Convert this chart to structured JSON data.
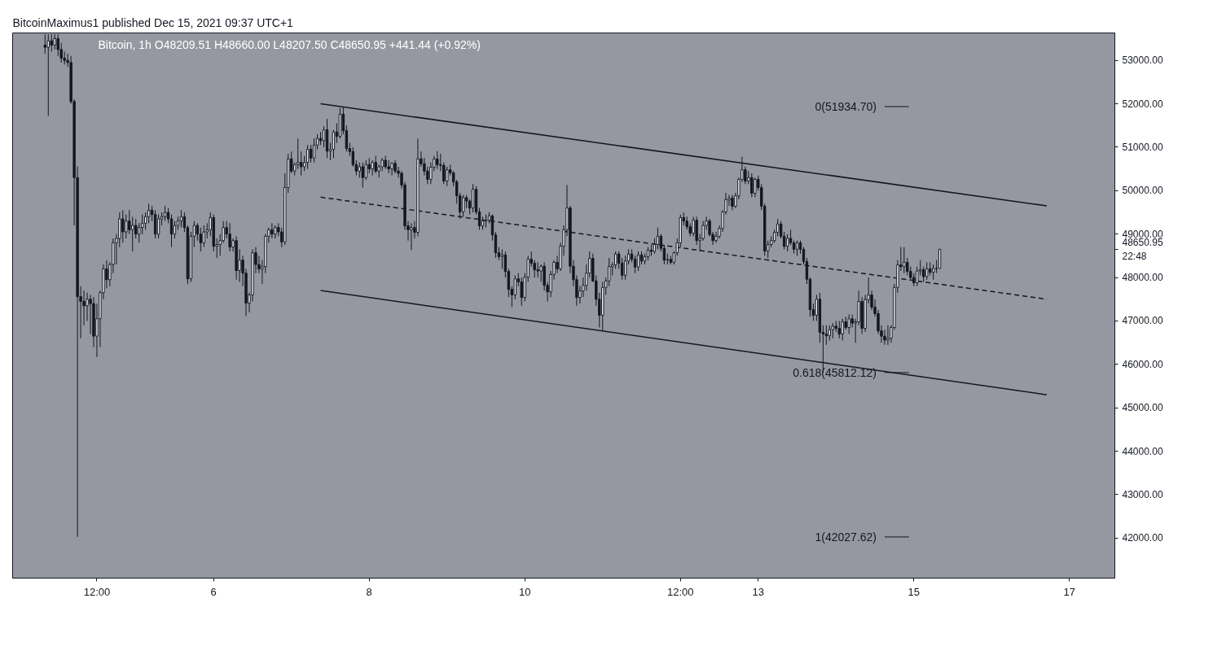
{
  "chart_data": {
    "type": "candlestick",
    "title": "BitcoinMaximus1 published Dec 15, 2021 09:37 UTC+1",
    "annotations": [
      "Bitcoin, 1h   O48209.51  H48660.00  L48207.50  C48650.95  +441.44 (+0.92%)"
    ],
    "ref_lines": [
      {
        "axis": "y",
        "value": 51934.7,
        "label": "0(51934.70)"
      },
      {
        "axis": "y",
        "value": 45812.12,
        "label": "0.618(45812.12)"
      },
      {
        "axis": "y",
        "value": 42027.62,
        "label": "1(42027.62)"
      }
    ],
    "xlim": [
      "2021-12-03T10:00",
      "2021-12-17T14:00"
    ],
    "xticks": [
      {
        "value": "2021-12-04T12:00",
        "label": "12:00"
      },
      {
        "value": "2021-12-06",
        "label": "6"
      },
      {
        "value": "2021-12-08",
        "label": "8"
      },
      {
        "value": "2021-12-10",
        "label": "10"
      },
      {
        "value": "2021-12-12",
        "label": "12:00"
      },
      {
        "value": "2021-12-13",
        "label": "13"
      },
      {
        "value": "2021-12-15",
        "label": "15"
      },
      {
        "value": "2021-12-17",
        "label": "17"
      }
    ],
    "ylim": [
      41080,
      53630
    ],
    "yticks": [
      {
        "value": 42000,
        "label": "42000.00"
      },
      {
        "value": 43000,
        "label": "43000.00"
      },
      {
        "value": 44000,
        "label": "44000.00"
      },
      {
        "value": 45000,
        "label": "45000.00"
      },
      {
        "value": 46000,
        "label": "46000.00"
      },
      {
        "value": 47000,
        "label": "47000.00"
      },
      {
        "value": 48000,
        "label": "48000.00"
      },
      {
        "value": 48650.95,
        "label": "48650.95\n22:48"
      },
      {
        "value": 49000,
        "label": "49000.00"
      },
      {
        "value": 50000,
        "label": "50000.00"
      },
      {
        "value": 51000,
        "label": "51000.00"
      },
      {
        "value": 52000,
        "label": "52000.00"
      },
      {
        "value": 53000,
        "label": "53000.00"
      }
    ],
    "x": [
      "2021-12-03T20:00",
      "2021-12-03T21:00",
      "2021-12-03T22:00",
      "2021-12-03T23:00",
      "2021-12-04T00:00",
      "2021-12-04T01:00",
      "2021-12-04T02:00",
      "2021-12-04T03:00",
      "2021-12-04T04:00",
      "2021-12-04T05:00",
      "2021-12-04T06:00",
      "2021-12-04T07:00",
      "2021-12-04T08:00",
      "2021-12-04T09:00",
      "2021-12-04T10:00",
      "2021-12-04T11:00",
      "2021-12-04T12:00",
      "2021-12-04T13:00",
      "2021-12-04T14:00",
      "2021-12-04T15:00",
      "2021-12-04T16:00",
      "2021-12-04T17:00",
      "2021-12-04T18:00",
      "2021-12-04T19:00",
      "2021-12-04T20:00",
      "2021-12-04T21:00",
      "2021-12-04T22:00",
      "2021-12-04T23:00",
      "2021-12-05T00:00",
      "2021-12-05T01:00",
      "2021-12-05T02:00",
      "2021-12-05T03:00",
      "2021-12-05T04:00",
      "2021-12-05T05:00",
      "2021-12-05T06:00",
      "2021-12-05T07:00",
      "2021-12-05T08:00",
      "2021-12-05T09:00",
      "2021-12-05T10:00",
      "2021-12-05T11:00",
      "2021-12-05T12:00",
      "2021-12-05T13:00",
      "2021-12-05T14:00",
      "2021-12-05T15:00",
      "2021-12-05T16:00",
      "2021-12-05T17:00",
      "2021-12-05T18:00",
      "2021-12-05T19:00",
      "2021-12-05T20:00",
      "2021-12-05T21:00",
      "2021-12-05T22:00",
      "2021-12-05T23:00",
      "2021-12-06T00:00",
      "2021-12-06T01:00",
      "2021-12-06T02:00",
      "2021-12-06T03:00",
      "2021-12-06T04:00",
      "2021-12-06T05:00",
      "2021-12-06T06:00",
      "2021-12-06T07:00",
      "2021-12-06T08:00",
      "2021-12-06T09:00",
      "2021-12-06T10:00",
      "2021-12-06T11:00",
      "2021-12-06T12:00",
      "2021-12-06T13:00",
      "2021-12-06T14:00",
      "2021-12-06T15:00",
      "2021-12-06T16:00",
      "2021-12-06T17:00",
      "2021-12-06T18:00",
      "2021-12-06T19:00",
      "2021-12-06T20:00",
      "2021-12-06T21:00",
      "2021-12-06T22:00",
      "2021-12-06T23:00",
      "2021-12-07T00:00",
      "2021-12-07T01:00",
      "2021-12-07T02:00",
      "2021-12-07T03:00",
      "2021-12-07T04:00",
      "2021-12-07T05:00",
      "2021-12-07T06:00",
      "2021-12-07T07:00",
      "2021-12-07T08:00",
      "2021-12-07T09:00",
      "2021-12-07T10:00",
      "2021-12-07T11:00",
      "2021-12-07T12:00",
      "2021-12-07T13:00",
      "2021-12-07T14:00",
      "2021-12-07T15:00",
      "2021-12-07T16:00",
      "2021-12-07T17:00",
      "2021-12-07T18:00",
      "2021-12-07T19:00",
      "2021-12-07T20:00",
      "2021-12-07T21:00",
      "2021-12-07T22:00",
      "2021-12-07T23:00",
      "2021-12-08T00:00",
      "2021-12-08T01:00",
      "2021-12-08T02:00",
      "2021-12-08T03:00",
      "2021-12-08T04:00",
      "2021-12-08T05:00",
      "2021-12-08T06:00",
      "2021-12-08T07:00",
      "2021-12-08T08:00",
      "2021-12-08T09:00",
      "2021-12-08T10:00",
      "2021-12-08T11:00",
      "2021-12-08T12:00",
      "2021-12-08T13:00",
      "2021-12-08T14:00",
      "2021-12-08T15:00",
      "2021-12-08T16:00",
      "2021-12-08T17:00",
      "2021-12-08T18:00",
      "2021-12-08T19:00",
      "2021-12-08T20:00",
      "2021-12-08T21:00",
      "2021-12-08T22:00",
      "2021-12-08T23:00",
      "2021-12-09T00:00",
      "2021-12-09T01:00",
      "2021-12-09T02:00",
      "2021-12-09T03:00",
      "2021-12-09T04:00",
      "2021-12-09T05:00",
      "2021-12-09T06:00",
      "2021-12-09T07:00",
      "2021-12-09T08:00",
      "2021-12-09T09:00",
      "2021-12-09T10:00",
      "2021-12-09T11:00",
      "2021-12-09T12:00",
      "2021-12-09T13:00",
      "2021-12-09T14:00",
      "2021-12-09T15:00",
      "2021-12-09T16:00",
      "2021-12-09T17:00",
      "2021-12-09T18:00",
      "2021-12-09T19:00",
      "2021-12-09T20:00",
      "2021-12-09T21:00",
      "2021-12-09T22:00",
      "2021-12-09T23:00",
      "2021-12-10T00:00",
      "2021-12-10T01:00",
      "2021-12-10T02:00",
      "2021-12-10T03:00",
      "2021-12-10T04:00",
      "2021-12-10T05:00",
      "2021-12-10T06:00",
      "2021-12-10T07:00",
      "2021-12-10T08:00",
      "2021-12-10T09:00",
      "2021-12-10T10:00",
      "2021-12-10T11:00",
      "2021-12-10T12:00",
      "2021-12-10T13:00",
      "2021-12-10T14:00",
      "2021-12-10T15:00",
      "2021-12-10T16:00",
      "2021-12-10T17:00",
      "2021-12-10T18:00",
      "2021-12-10T19:00",
      "2021-12-10T20:00",
      "2021-12-10T21:00",
      "2021-12-10T22:00",
      "2021-12-10T23:00",
      "2021-12-11T00:00",
      "2021-12-11T01:00",
      "2021-12-11T02:00",
      "2021-12-11T03:00",
      "2021-12-11T04:00",
      "2021-12-11T05:00",
      "2021-12-11T06:00",
      "2021-12-11T07:00",
      "2021-12-11T08:00",
      "2021-12-11T09:00",
      "2021-12-11T10:00",
      "2021-12-11T11:00",
      "2021-12-11T12:00",
      "2021-12-11T13:00",
      "2021-12-11T14:00",
      "2021-12-11T15:00",
      "2021-12-11T16:00",
      "2021-12-11T17:00",
      "2021-12-11T18:00",
      "2021-12-11T19:00",
      "2021-12-11T20:00",
      "2021-12-11T21:00",
      "2021-12-11T22:00",
      "2021-12-11T23:00",
      "2021-12-12T00:00",
      "2021-12-12T01:00",
      "2021-12-12T02:00",
      "2021-12-12T03:00",
      "2021-12-12T04:00",
      "2021-12-12T05:00",
      "2021-12-12T06:00",
      "2021-12-12T07:00",
      "2021-12-12T08:00",
      "2021-12-12T09:00",
      "2021-12-12T10:00",
      "2021-12-12T11:00",
      "2021-12-12T12:00",
      "2021-12-12T13:00",
      "2021-12-12T14:00",
      "2021-12-12T15:00",
      "2021-12-12T16:00",
      "2021-12-12T17:00",
      "2021-12-12T18:00",
      "2021-12-12T19:00",
      "2021-12-12T20:00",
      "2021-12-12T21:00",
      "2021-12-12T22:00",
      "2021-12-12T23:00",
      "2021-12-13T00:00",
      "2021-12-13T01:00",
      "2021-12-13T02:00",
      "2021-12-13T03:00",
      "2021-12-13T04:00",
      "2021-12-13T05:00",
      "2021-12-13T06:00",
      "2021-12-13T07:00",
      "2021-12-13T08:00",
      "2021-12-13T09:00",
      "2021-12-13T10:00",
      "2021-12-13T11:00",
      "2021-12-13T12:00",
      "2021-12-13T13:00",
      "2021-12-13T14:00",
      "2021-12-13T15:00",
      "2021-12-13T16:00",
      "2021-12-13T17:00",
      "2021-12-13T18:00",
      "2021-12-13T19:00",
      "2021-12-13T20:00",
      "2021-12-13T21:00",
      "2021-12-13T22:00",
      "2021-12-13T23:00",
      "2021-12-14T00:00",
      "2021-12-14T01:00",
      "2021-12-14T02:00",
      "2021-12-14T03:00",
      "2021-12-14T04:00",
      "2021-12-14T05:00",
      "2021-12-14T06:00",
      "2021-12-14T07:00",
      "2021-12-14T08:00",
      "2021-12-14T09:00",
      "2021-12-14T10:00",
      "2021-12-14T11:00",
      "2021-12-14T12:00",
      "2021-12-14T13:00",
      "2021-12-14T14:00",
      "2021-12-14T15:00",
      "2021-12-14T16:00",
      "2021-12-14T17:00",
      "2021-12-14T18:00",
      "2021-12-14T19:00",
      "2021-12-14T20:00",
      "2021-12-14T21:00",
      "2021-12-14T22:00",
      "2021-12-14T23:00",
      "2021-12-15T00:00",
      "2021-12-15T01:00",
      "2021-12-15T02:00",
      "2021-12-15T03:00",
      "2021-12-15T04:00",
      "2021-12-15T05:00",
      "2021-12-15T06:00",
      "2021-12-15T07:00",
      "2021-12-15T08:00"
    ],
    "ohlc": [
      [
        53350,
        53600,
        53150,
        53300
      ],
      [
        53300,
        53600,
        51720,
        53450
      ],
      [
        53450,
        53600,
        53200,
        53350
      ],
      [
        53350,
        53600,
        53250,
        53500
      ],
      [
        53500,
        53600,
        53100,
        53250
      ],
      [
        53250,
        53400,
        52950,
        53050
      ],
      [
        53050,
        53200,
        52900,
        53000
      ],
      [
        53000,
        53150,
        52850,
        52950
      ],
      [
        52950,
        53100,
        52000,
        52050
      ],
      [
        52050,
        52100,
        49200,
        50300
      ],
      [
        50300,
        50560,
        42027.62,
        47560
      ],
      [
        47560,
        47800,
        46600,
        47450
      ],
      [
        47450,
        47700,
        46900,
        47350
      ],
      [
        47350,
        47650,
        47000,
        47500
      ],
      [
        47500,
        47600,
        46700,
        47400
      ],
      [
        47400,
        47550,
        46400,
        46650
      ],
      [
        46650,
        47400,
        46170,
        47050
      ],
      [
        47050,
        47700,
        46400,
        47650
      ],
      [
        47650,
        48300,
        47500,
        48200
      ],
      [
        48200,
        48400,
        47750,
        47950
      ],
      [
        47950,
        48350,
        47800,
        48300
      ],
      [
        48300,
        48900,
        48100,
        48800
      ],
      [
        48800,
        49000,
        48300,
        48900
      ],
      [
        48900,
        49500,
        48700,
        49350
      ],
      [
        49350,
        49550,
        48800,
        49050
      ],
      [
        49050,
        49450,
        48900,
        49300
      ],
      [
        49300,
        49550,
        49000,
        49100
      ],
      [
        49100,
        49400,
        48600,
        49200
      ],
      [
        49200,
        49350,
        48900,
        49000
      ],
      [
        49000,
        49250,
        48800,
        49150
      ],
      [
        49150,
        49450,
        49000,
        49250
      ],
      [
        49250,
        49500,
        49100,
        49400
      ],
      [
        49400,
        49700,
        49250,
        49550
      ],
      [
        49550,
        49650,
        49300,
        49450
      ],
      [
        49450,
        49550,
        48900,
        49000
      ],
      [
        49000,
        49450,
        48900,
        49350
      ],
      [
        49350,
        49500,
        49200,
        49400
      ],
      [
        49400,
        49650,
        49300,
        49500
      ],
      [
        49500,
        49600,
        49250,
        49350
      ],
      [
        49350,
        49450,
        48700,
        49000
      ],
      [
        49000,
        49300,
        48900,
        49200
      ],
      [
        49200,
        49400,
        49100,
        49300
      ],
      [
        49300,
        49550,
        49150,
        49400
      ],
      [
        49400,
        49500,
        49050,
        49150
      ],
      [
        49150,
        49200,
        47850,
        47970
      ],
      [
        47970,
        49050,
        47900,
        48950
      ],
      [
        48950,
        49300,
        48700,
        49200
      ],
      [
        49200,
        49250,
        48850,
        49000
      ],
      [
        49000,
        49150,
        48600,
        48800
      ],
      [
        48800,
        49200,
        48700,
        49050
      ],
      [
        49050,
        49250,
        48900,
        49100
      ],
      [
        49100,
        49500,
        48950,
        49380
      ],
      [
        49380,
        49450,
        48600,
        48720
      ],
      [
        48720,
        48900,
        48450,
        48760
      ],
      [
        48760,
        49000,
        48500,
        48850
      ],
      [
        48850,
        49300,
        48800,
        49150
      ],
      [
        49150,
        49300,
        48900,
        49000
      ],
      [
        49000,
        49250,
        48600,
        48700
      ],
      [
        48700,
        48900,
        48600,
        48850
      ],
      [
        48850,
        48950,
        47950,
        48160
      ],
      [
        48160,
        48650,
        47900,
        48400
      ],
      [
        48400,
        48500,
        47800,
        48100
      ],
      [
        48100,
        48200,
        47110,
        47410
      ],
      [
        47410,
        47650,
        47200,
        47600
      ],
      [
        47600,
        48650,
        47450,
        48570
      ],
      [
        48570,
        48700,
        48100,
        48300
      ],
      [
        48300,
        48500,
        48100,
        48200
      ],
      [
        48200,
        48400,
        47850,
        48250
      ],
      [
        48250,
        49000,
        48100,
        48950
      ],
      [
        48950,
        49150,
        48800,
        49100
      ],
      [
        49100,
        49250,
        48900,
        49000
      ],
      [
        49000,
        49200,
        48900,
        49150
      ],
      [
        49150,
        49250,
        48950,
        49050
      ],
      [
        49050,
        49150,
        48700,
        48820
      ],
      [
        48820,
        50400,
        48750,
        50070
      ],
      [
        50070,
        50850,
        49950,
        50730
      ],
      [
        50730,
        50900,
        50400,
        50450
      ],
      [
        50450,
        50650,
        50350,
        50600
      ],
      [
        50600,
        51200,
        50500,
        50650
      ],
      [
        50650,
        50900,
        50350,
        50550
      ],
      [
        50550,
        50800,
        50450,
        50650
      ],
      [
        50650,
        51050,
        50500,
        50950
      ],
      [
        50950,
        51050,
        50650,
        50750
      ],
      [
        50750,
        51200,
        50650,
        51050
      ],
      [
        51050,
        51300,
        50950,
        51200
      ],
      [
        51200,
        51350,
        51050,
        51150
      ],
      [
        51150,
        51480,
        51000,
        51400
      ],
      [
        51400,
        51650,
        50750,
        50910
      ],
      [
        50910,
        51100,
        50700,
        50950
      ],
      [
        50950,
        51400,
        50750,
        51350
      ],
      [
        51350,
        51550,
        51100,
        51250
      ],
      [
        51250,
        51900,
        51200,
        51760
      ],
      [
        51760,
        51934.7,
        51300,
        51380
      ],
      [
        51380,
        51500,
        50900,
        50970
      ],
      [
        50970,
        51100,
        50800,
        50900
      ],
      [
        50900,
        51000,
        50550,
        50600
      ],
      [
        50600,
        50700,
        50350,
        50450
      ],
      [
        50450,
        50650,
        50300,
        50550
      ],
      [
        50550,
        50650,
        50070,
        50300
      ],
      [
        50300,
        50700,
        50250,
        50600
      ],
      [
        50600,
        50750,
        50400,
        50500
      ],
      [
        50500,
        50700,
        50350,
        50650
      ],
      [
        50650,
        50800,
        50400,
        50450
      ],
      [
        50450,
        50600,
        50300,
        50550
      ],
      [
        50550,
        50750,
        50450,
        50700
      ],
      [
        50700,
        50800,
        50500,
        50550
      ],
      [
        50550,
        50700,
        50400,
        50500
      ],
      [
        50500,
        50650,
        50350,
        50630
      ],
      [
        50630,
        50700,
        50400,
        50450
      ],
      [
        50450,
        50550,
        50300,
        50400
      ],
      [
        50400,
        50450,
        50050,
        50130
      ],
      [
        50130,
        50200,
        49100,
        49190
      ],
      [
        49190,
        49300,
        48850,
        49100
      ],
      [
        49100,
        49250,
        48630,
        49150
      ],
      [
        49150,
        49300,
        48900,
        49040
      ],
      [
        49040,
        51200,
        48950,
        50730
      ],
      [
        50730,
        50900,
        50550,
        50620
      ],
      [
        50620,
        50750,
        50350,
        50450
      ],
      [
        50450,
        50550,
        50150,
        50260
      ],
      [
        50260,
        50650,
        50150,
        50540
      ],
      [
        50540,
        50800,
        50450,
        50730
      ],
      [
        50730,
        50910,
        50500,
        50600
      ],
      [
        50600,
        50850,
        50450,
        50580
      ],
      [
        50580,
        50650,
        50150,
        50220
      ],
      [
        50220,
        50550,
        50100,
        50480
      ],
      [
        50480,
        50600,
        50350,
        50410
      ],
      [
        50410,
        50450,
        50100,
        50200
      ],
      [
        50200,
        50250,
        49700,
        49880
      ],
      [
        49880,
        49950,
        49350,
        49510
      ],
      [
        49510,
        49900,
        49400,
        49840
      ],
      [
        49840,
        49900,
        49600,
        49760
      ],
      [
        49760,
        49800,
        49450,
        49600
      ],
      [
        49600,
        50150,
        49500,
        50030
      ],
      [
        50030,
        50100,
        49450,
        49510
      ],
      [
        49510,
        49600,
        49100,
        49190
      ],
      [
        49190,
        49400,
        49100,
        49300
      ],
      [
        49300,
        49450,
        49150,
        49320
      ],
      [
        49320,
        49500,
        49250,
        49420
      ],
      [
        49420,
        49450,
        48850,
        48980
      ],
      [
        48980,
        49050,
        48450,
        48570
      ],
      [
        48570,
        48700,
        48400,
        48480
      ],
      [
        48480,
        48650,
        48200,
        48520
      ],
      [
        48520,
        48600,
        48000,
        48140
      ],
      [
        48140,
        48200,
        47550,
        47730
      ],
      [
        47730,
        47800,
        47320,
        47600
      ],
      [
        47600,
        48050,
        47500,
        47970
      ],
      [
        47970,
        48100,
        47800,
        47900
      ],
      [
        47900,
        48000,
        47350,
        47540
      ],
      [
        47540,
        48100,
        47450,
        48010
      ],
      [
        48010,
        48500,
        47900,
        48420
      ],
      [
        48420,
        48600,
        48250,
        48330
      ],
      [
        48330,
        48400,
        48000,
        48180
      ],
      [
        48180,
        48350,
        48000,
        48150
      ],
      [
        48150,
        48300,
        47900,
        48260
      ],
      [
        48260,
        48350,
        47700,
        47820
      ],
      [
        47820,
        47900,
        47450,
        47670
      ],
      [
        47670,
        48150,
        47550,
        48070
      ],
      [
        48070,
        48400,
        47950,
        48350
      ],
      [
        48350,
        48500,
        48100,
        48200
      ],
      [
        48200,
        48800,
        48150,
        48720
      ],
      [
        48720,
        49200,
        48500,
        49100
      ],
      [
        49100,
        50130,
        48950,
        49600
      ],
      [
        49600,
        49650,
        48100,
        48260
      ],
      [
        48260,
        48400,
        47800,
        47950
      ],
      [
        47950,
        48050,
        47350,
        47540
      ],
      [
        47540,
        47800,
        47400,
        47690
      ],
      [
        47690,
        48000,
        47550,
        47820
      ],
      [
        47820,
        48300,
        47700,
        48100
      ],
      [
        48100,
        48600,
        48000,
        48440
      ],
      [
        48440,
        48550,
        47900,
        47920
      ],
      [
        47920,
        48050,
        47350,
        47500
      ],
      [
        47500,
        47650,
        46850,
        47130
      ],
      [
        47130,
        47900,
        46760,
        47770
      ],
      [
        47770,
        48000,
        47600,
        47920
      ],
      [
        47920,
        48450,
        47800,
        48250
      ],
      [
        48250,
        48350,
        48050,
        48290
      ],
      [
        48290,
        48600,
        48200,
        48540
      ],
      [
        48540,
        48600,
        48200,
        48330
      ],
      [
        48330,
        48450,
        47950,
        48050
      ],
      [
        48050,
        48500,
        47950,
        48380
      ],
      [
        48380,
        48650,
        48300,
        48540
      ],
      [
        48540,
        48650,
        48350,
        48420
      ],
      [
        48420,
        48500,
        48100,
        48240
      ],
      [
        48240,
        48600,
        48150,
        48520
      ],
      [
        48520,
        48600,
        48300,
        48380
      ],
      [
        48380,
        48550,
        48300,
        48480
      ],
      [
        48480,
        48700,
        48400,
        48630
      ],
      [
        48630,
        48750,
        48500,
        48600
      ],
      [
        48600,
        48900,
        48550,
        48760
      ],
      [
        48760,
        49150,
        48650,
        48950
      ],
      [
        48950,
        49000,
        48600,
        48670
      ],
      [
        48670,
        48750,
        48300,
        48400
      ],
      [
        48400,
        48550,
        48300,
        48420
      ],
      [
        48420,
        48500,
        48300,
        48350
      ],
      [
        48350,
        48600,
        48300,
        48570
      ],
      [
        48570,
        48900,
        48500,
        48800
      ],
      [
        48800,
        49450,
        48700,
        49380
      ],
      [
        49380,
        49500,
        49200,
        49300
      ],
      [
        49300,
        49400,
        49100,
        49170
      ],
      [
        49170,
        49250,
        48950,
        49020
      ],
      [
        49020,
        49400,
        48950,
        49320
      ],
      [
        49320,
        49400,
        48750,
        48850
      ],
      [
        48850,
        49000,
        48600,
        48900
      ],
      [
        48900,
        49300,
        48850,
        49200
      ],
      [
        49200,
        49400,
        49100,
        49300
      ],
      [
        49300,
        49350,
        48950,
        48990
      ],
      [
        48990,
        49050,
        48750,
        48850
      ],
      [
        48850,
        49050,
        48800,
        48950
      ],
      [
        48950,
        49200,
        48900,
        49130
      ],
      [
        49130,
        49550,
        49050,
        49510
      ],
      [
        49510,
        49950,
        49450,
        49790
      ],
      [
        49790,
        49900,
        49650,
        49830
      ],
      [
        49830,
        49900,
        49550,
        49640
      ],
      [
        49640,
        49950,
        49600,
        49880
      ],
      [
        49880,
        50300,
        49800,
        50260
      ],
      [
        50260,
        50780,
        50200,
        50480
      ],
      [
        50480,
        50550,
        50150,
        50220
      ],
      [
        50220,
        50450,
        50150,
        50300
      ],
      [
        50300,
        50400,
        49850,
        49940
      ],
      [
        49940,
        50300,
        49850,
        50260
      ],
      [
        50260,
        50350,
        50000,
        50070
      ],
      [
        50070,
        50150,
        49550,
        49640
      ],
      [
        49640,
        49700,
        48500,
        48610
      ],
      [
        48610,
        48850,
        48450,
        48760
      ],
      [
        48760,
        48950,
        48700,
        48850
      ],
      [
        48850,
        49100,
        48800,
        49040
      ],
      [
        49040,
        49350,
        48950,
        49230
      ],
      [
        49230,
        49300,
        48900,
        48950
      ],
      [
        48950,
        49050,
        48650,
        48720
      ],
      [
        48720,
        49000,
        48600,
        48900
      ],
      [
        48900,
        49100,
        48750,
        48800
      ],
      [
        48800,
        48850,
        48550,
        48650
      ],
      [
        48650,
        48850,
        48500,
        48800
      ],
      [
        48800,
        48850,
        48550,
        48650
      ],
      [
        48650,
        48700,
        48300,
        48370
      ],
      [
        48370,
        48450,
        47850,
        47960
      ],
      [
        47960,
        48000,
        47100,
        47260
      ],
      [
        47260,
        47400,
        47000,
        47130
      ],
      [
        47130,
        47600,
        47000,
        47500
      ],
      [
        47500,
        47650,
        46500,
        46740
      ],
      [
        46740,
        46900,
        45812.12,
        46700
      ],
      [
        46700,
        46900,
        46450,
        46660
      ],
      [
        46660,
        46900,
        46550,
        46800
      ],
      [
        46800,
        46950,
        46600,
        46880
      ],
      [
        46880,
        47000,
        46750,
        46830
      ],
      [
        46830,
        47000,
        46600,
        46700
      ],
      [
        46700,
        47050,
        46550,
        46980
      ],
      [
        46980,
        47100,
        46800,
        46850
      ],
      [
        46850,
        47150,
        46700,
        47050
      ],
      [
        47050,
        47150,
        46850,
        46950
      ],
      [
        46950,
        47050,
        46500,
        46980
      ],
      [
        46980,
        47700,
        46900,
        47450
      ],
      [
        47450,
        47550,
        46700,
        46830
      ],
      [
        46830,
        47600,
        46750,
        47490
      ],
      [
        47490,
        48000,
        47400,
        47600
      ],
      [
        47600,
        47700,
        47250,
        47320
      ],
      [
        47320,
        47500,
        47100,
        47170
      ],
      [
        47170,
        47250,
        46700,
        46770
      ],
      [
        46770,
        46900,
        46500,
        46650
      ],
      [
        46650,
        46800,
        46450,
        46560
      ],
      [
        46560,
        46900,
        46450,
        46600
      ],
      [
        46600,
        46900,
        46500,
        46850
      ],
      [
        46850,
        47850,
        46800,
        47770
      ],
      [
        47770,
        48400,
        47650,
        48290
      ],
      [
        48290,
        48700,
        48150,
        48250
      ],
      [
        48250,
        48700,
        48100,
        48350
      ],
      [
        48350,
        48450,
        48050,
        48140
      ],
      [
        48140,
        48250,
        47950,
        48000
      ],
      [
        48000,
        48100,
        47800,
        47880
      ],
      [
        47880,
        48250,
        47800,
        48150
      ],
      [
        48150,
        48400,
        48050,
        48180
      ],
      [
        48180,
        48250,
        47900,
        48020
      ],
      [
        48020,
        48350,
        47950,
        48200
      ],
      [
        48200,
        48350,
        48050,
        48120
      ],
      [
        48120,
        48300,
        47950,
        48210
      ],
      [
        48210,
        48400,
        48100,
        48209.51
      ],
      [
        48209.51,
        48660.0,
        48207.5,
        48650.95
      ]
    ],
    "series": [
      {
        "type": "line",
        "color": "#131722",
        "line_style": "solid",
        "x": [
          "2021-12-07T09:00",
          "2021-12-16T17:00"
        ],
        "values": [
          52000,
          49650
        ]
      },
      {
        "type": "line",
        "color": "#131722",
        "line_style": "dashed",
        "x": [
          "2021-12-07T09:00",
          "2021-12-16T17:00"
        ],
        "values": [
          49850,
          47500
        ]
      },
      {
        "type": "line",
        "color": "#131722",
        "line_style": "solid",
        "x": [
          "2021-12-07T09:00",
          "2021-12-16T17:00"
        ],
        "values": [
          47700,
          45300
        ]
      }
    ]
  }
}
